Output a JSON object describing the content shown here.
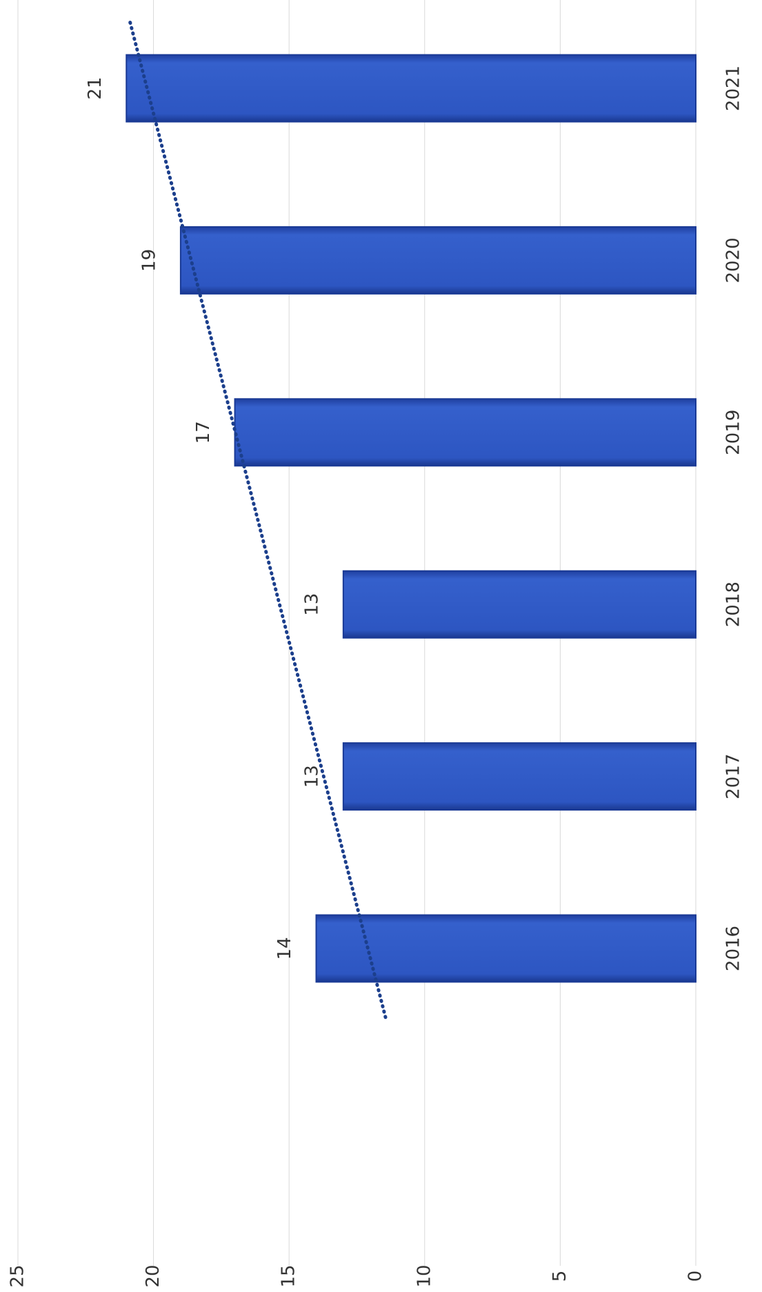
{
  "chart_data": {
    "type": "bar",
    "orientation": "horizontal",
    "rotated": true,
    "categories": [
      "2016",
      "2017",
      "2018",
      "2019",
      "2020",
      "2021"
    ],
    "values": [
      14,
      13,
      13,
      17,
      19,
      21
    ],
    "color": "#2f57c4",
    "xlim": [
      0,
      25
    ],
    "xticks": [
      0,
      5,
      10,
      15,
      20,
      25
    ],
    "grid": true,
    "trendline": "linear",
    "trendline_color": "#1c3f8c"
  }
}
